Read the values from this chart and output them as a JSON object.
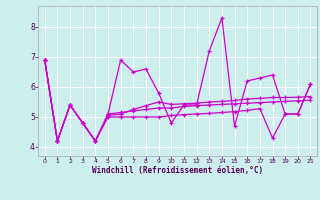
{
  "xlabel": "Windchill (Refroidissement éolien,°C)",
  "background_color": "#cceeed",
  "grid_color": "#ffffff",
  "line_color": "#cc00cc",
  "series": [
    [
      6.9,
      4.2,
      5.4,
      4.8,
      4.2,
      5.1,
      6.9,
      6.5,
      6.6,
      5.8,
      4.8,
      5.4,
      5.4,
      7.2,
      8.3,
      4.7,
      6.2,
      6.3,
      6.4,
      5.1,
      5.1,
      6.1
    ],
    [
      6.9,
      4.2,
      5.4,
      4.8,
      4.2,
      5.1,
      5.15,
      5.2,
      5.25,
      5.3,
      5.3,
      5.35,
      5.38,
      5.4,
      5.42,
      5.44,
      5.46,
      5.48,
      5.5,
      5.52,
      5.54,
      5.56
    ],
    [
      6.9,
      4.2,
      5.4,
      4.8,
      4.2,
      5.05,
      5.1,
      5.25,
      5.38,
      5.5,
      5.42,
      5.44,
      5.46,
      5.5,
      5.52,
      5.55,
      5.6,
      5.62,
      5.65,
      5.65,
      5.66,
      5.68
    ],
    [
      6.9,
      4.2,
      5.4,
      4.8,
      4.2,
      5.0,
      5.0,
      5.0,
      5.0,
      5.0,
      5.05,
      5.08,
      5.1,
      5.12,
      5.15,
      5.18,
      5.22,
      5.28,
      4.3,
      5.1,
      5.1,
      6.1
    ]
  ],
  "ylim": [
    3.7,
    8.7
  ],
  "xlim": [
    -0.5,
    21.5
  ],
  "yticks": [
    4,
    5,
    6,
    7,
    8
  ],
  "xticks": [
    0,
    1,
    2,
    3,
    4,
    5,
    6,
    7,
    8,
    9,
    10,
    11,
    12,
    13,
    14,
    15,
    16,
    17,
    18,
    19,
    20,
    21
  ]
}
